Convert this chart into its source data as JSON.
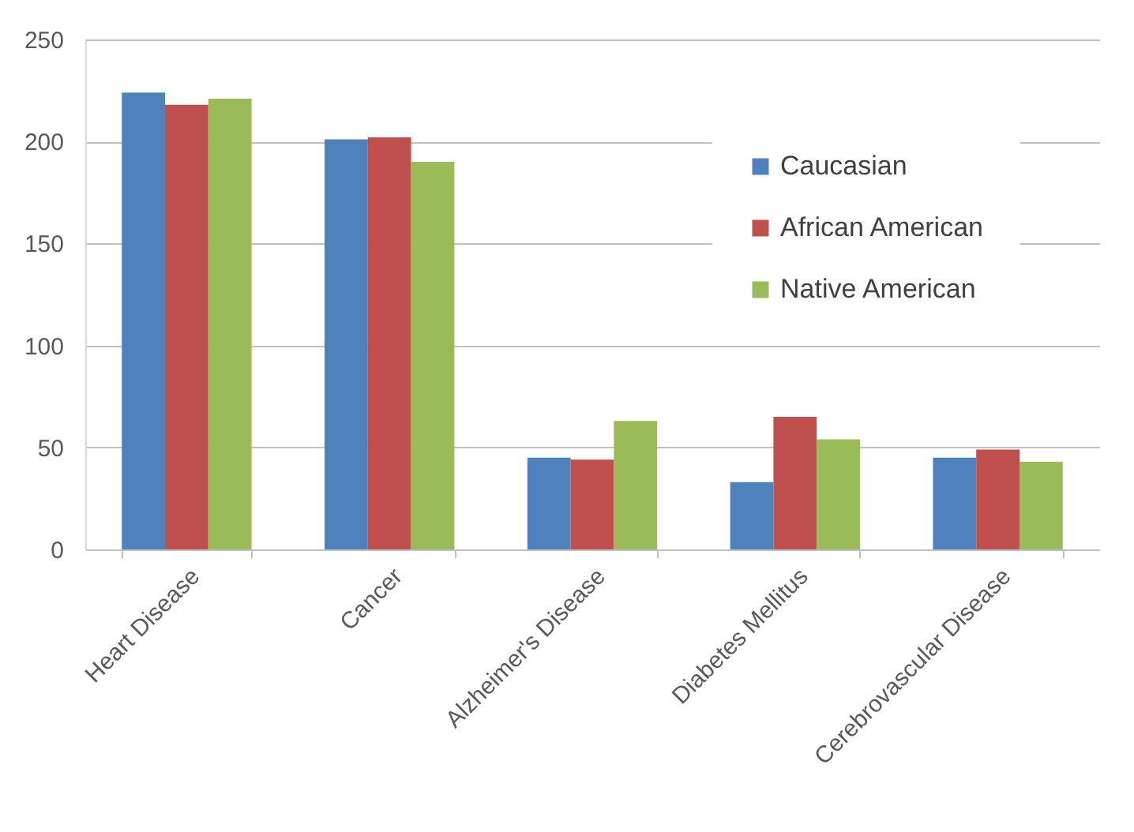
{
  "chart_data": {
    "type": "bar",
    "categories": [
      "Heart Disease",
      "Cancer",
      "Alzheimer's Disease",
      "Diabetes Mellitus",
      "Cerebrovascular Disease"
    ],
    "series": [
      {
        "name": "Caucasian",
        "color": "#4f81bd",
        "values": [
          224,
          201,
          45,
          33,
          45
        ]
      },
      {
        "name": "African American",
        "color": "#c0504d",
        "values": [
          218,
          202,
          44,
          65,
          49
        ]
      },
      {
        "name": "Native American",
        "color": "#9bbb59",
        "values": [
          221,
          190,
          63,
          54,
          43
        ]
      }
    ],
    "ylim": [
      0,
      250
    ],
    "yticks": [
      0,
      50,
      100,
      150,
      200,
      250
    ],
    "grid": "y",
    "legend": "top right"
  }
}
